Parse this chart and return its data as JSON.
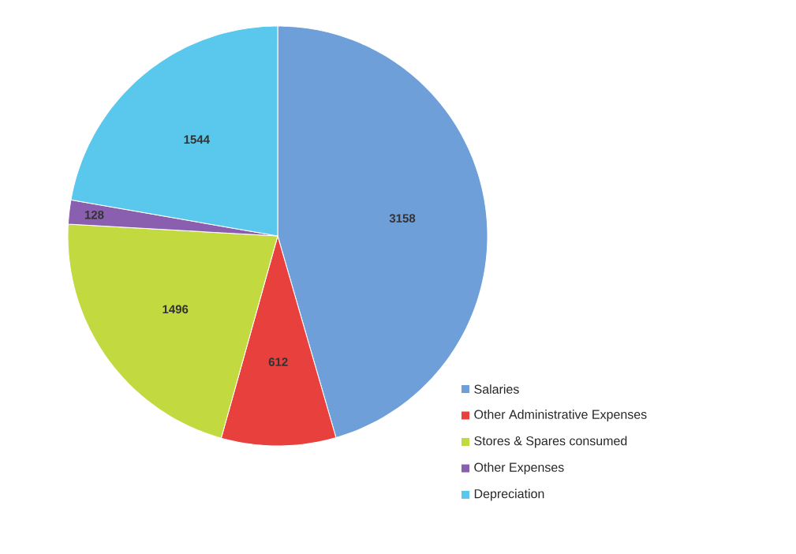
{
  "chart_data": {
    "type": "pie",
    "categories": [
      "Salaries",
      "Other Administrative Expenses",
      "Stores & Spares consumed",
      "Other Expenses",
      "Depreciation"
    ],
    "values": [
      3158,
      612,
      1496,
      128,
      1544
    ],
    "colors": [
      "#6f9fd8",
      "#e8403c",
      "#c3d940",
      "#8a5fb0",
      "#5ac8ec"
    ],
    "data_labels": true,
    "legend": "bottom right"
  }
}
